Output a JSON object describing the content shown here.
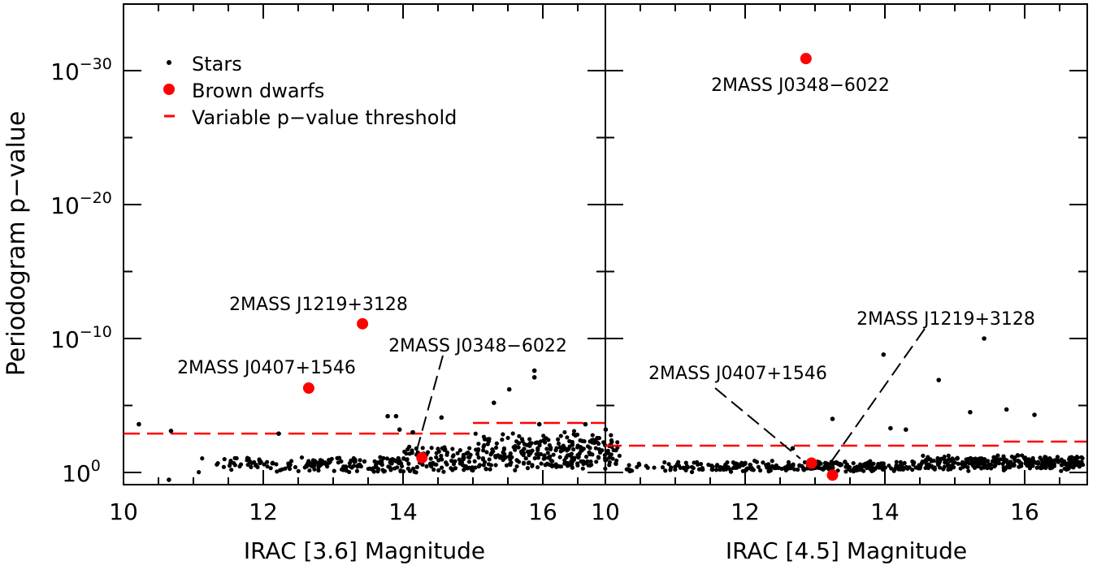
{
  "chart_data": {
    "type": "scatter",
    "ylabel": "Periodogram p−value",
    "y_scale": "log",
    "ylim_exponent": [
      -1,
      -32.5
    ],
    "legend": {
      "position": "top-left",
      "entries": [
        {
          "label": "Stars",
          "marker": "dot",
          "color": "#000000"
        },
        {
          "label": "Brown dwarfs",
          "marker": "filled-circle",
          "color": "#ff0000"
        },
        {
          "label": "Variable p−value threshold",
          "marker": "dashed-line",
          "color": "#ff0000"
        }
      ]
    },
    "y_ticks": [
      {
        "exponent": 0,
        "base": "10",
        "exp_label": "0"
      },
      {
        "exponent": -10,
        "base": "10",
        "exp_label": "−10"
      },
      {
        "exponent": -20,
        "base": "10",
        "exp_label": "−20"
      },
      {
        "exponent": -30,
        "base": "10",
        "exp_label": "−30"
      }
    ],
    "panels": [
      {
        "xlabel": "IRAC [3.6] Magnitude",
        "xlim": [
          10,
          17.2
        ],
        "x_ticks": [
          "10",
          "12",
          "14",
          "16"
        ],
        "threshold_segments": [
          {
            "x_start": 10.0,
            "x_end": 15.0,
            "p_exponent": -2.9
          },
          {
            "x_start": 15.0,
            "x_end": 17.2,
            "p_exponent": -3.7
          }
        ],
        "brown_dwarfs": [
          {
            "name": "2MASS J0407+1546",
            "mag": 12.65,
            "p_exponent": -6.3
          },
          {
            "name": "2MASS J1219+3128",
            "mag": 13.42,
            "p_exponent": -11.1
          },
          {
            "name": "2MASS J0348−6022",
            "mag": 14.27,
            "p_exponent": -1.1
          }
        ],
        "stars": [
          {
            "mag": 10.22,
            "p_exponent": -3.6
          },
          {
            "mag": 10.68,
            "p_exponent": -3.1
          },
          {
            "mag": 10.65,
            "p_exponent": 0.55
          },
          {
            "mag": 15.3,
            "p_exponent": -5.2
          },
          {
            "mag": 15.52,
            "p_exponent": -6.2
          },
          {
            "mag": 15.88,
            "p_exponent": -7.6
          },
          {
            "mag": 15.88,
            "p_exponent": -7.1
          },
          {
            "mag": 13.78,
            "p_exponent": -4.2
          },
          {
            "mag": 13.9,
            "p_exponent": -4.2
          },
          {
            "mag": 14.55,
            "p_exponent": -4.1
          },
          {
            "mag": 12.22,
            "p_exponent": -2.9
          },
          {
            "mag": 13.95,
            "p_exponent": -3.2
          },
          {
            "mag": 14.14,
            "p_exponent": -3.0
          },
          {
            "mag": 15.95,
            "p_exponent": -3.6
          },
          {
            "mag": 16.61,
            "p_exponent": -3.6
          },
          {
            "mag": 16.9,
            "p_exponent": -3.2
          }
        ]
      },
      {
        "xlabel": "IRAC [4.5] Magnitude",
        "xlim": [
          10,
          16.9
        ],
        "x_ticks": [
          "10",
          "12",
          "14",
          "16"
        ],
        "threshold_segments": [
          {
            "x_start": 10.0,
            "x_end": 15.7,
            "p_exponent": -2.0
          },
          {
            "x_start": 15.7,
            "x_end": 16.9,
            "p_exponent": -2.3
          }
        ],
        "brown_dwarfs": [
          {
            "name": "2MASS J0348−6022",
            "mag": 12.87,
            "p_exponent": -30.9
          },
          {
            "name": "2MASS J0407+1546",
            "mag": 12.95,
            "p_exponent": -0.7
          },
          {
            "name": "2MASS J1219+3128",
            "mag": 13.25,
            "p_exponent": 0.2
          }
        ],
        "stars": [
          {
            "mag": 13.98,
            "p_exponent": -8.8
          },
          {
            "mag": 15.42,
            "p_exponent": -10.0
          },
          {
            "mag": 14.77,
            "p_exponent": -6.9
          },
          {
            "mag": 15.22,
            "p_exponent": -4.5
          },
          {
            "mag": 15.74,
            "p_exponent": -4.7
          },
          {
            "mag": 16.14,
            "p_exponent": -4.3
          },
          {
            "mag": 14.3,
            "p_exponent": -3.2
          },
          {
            "mag": 13.25,
            "p_exponent": -4.0
          },
          {
            "mag": 14.08,
            "p_exponent": -3.3
          },
          {
            "mag": 12.68,
            "p_exponent": -1.8
          },
          {
            "mag": 11.52,
            "p_exponent": -0.5
          },
          {
            "mag": 10.35,
            "p_exponent": -0.1
          }
        ]
      }
    ]
  }
}
